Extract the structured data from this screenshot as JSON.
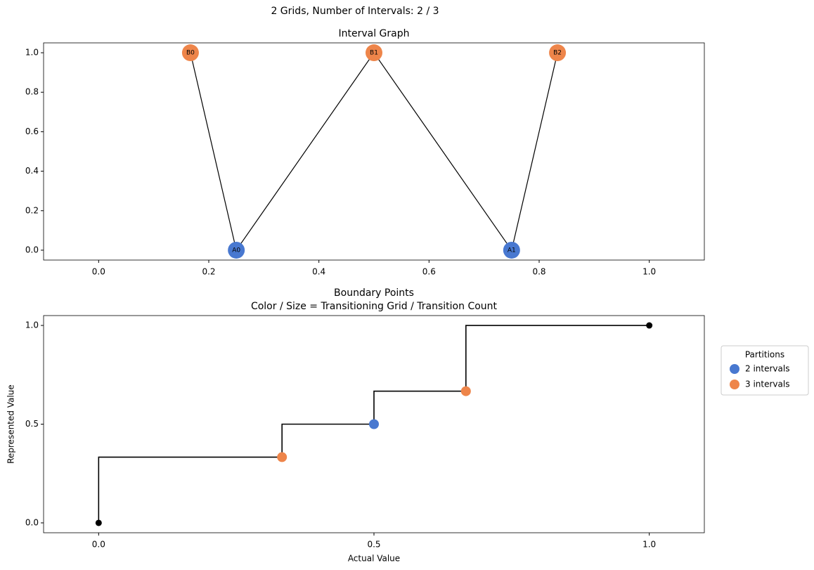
{
  "title": "2 Grids, Number of Intervals: 2 / 3",
  "chart_data": [
    {
      "type": "graph",
      "title": "Interval Graph",
      "nodes": [
        {
          "label": "B0",
          "x": 0.1667,
          "y": 1,
          "color": "#ee854a"
        },
        {
          "label": "B1",
          "x": 0.5,
          "y": 1,
          "color": "#ee854a"
        },
        {
          "label": "B2",
          "x": 0.8333,
          "y": 1,
          "color": "#ee854a"
        },
        {
          "label": "A0",
          "x": 0.25,
          "y": 0,
          "color": "#4878d0"
        },
        {
          "label": "A1",
          "x": 0.75,
          "y": 0,
          "color": "#4878d0"
        }
      ],
      "edges": [
        [
          0,
          3
        ],
        [
          3,
          1
        ],
        [
          1,
          4
        ],
        [
          4,
          2
        ]
      ],
      "edge_color": "#000000",
      "xlim": [
        -0.1,
        1.1
      ],
      "xticks": [
        {
          "value": 0,
          "label": "0.0"
        },
        0.2,
        0.4,
        0.6,
        0.8,
        {
          "value": 1,
          "label": "1.0"
        }
      ],
      "ylim": [
        -0.05,
        1.05
      ],
      "yticks": [
        {
          "value": 0,
          "label": "0.0"
        },
        0.2,
        0.4,
        0.6,
        0.8,
        {
          "value": 1,
          "label": "1.0"
        }
      ]
    },
    {
      "type": "step",
      "title": "Boundary Points\nColor / Size = Transitioning Grid / Transition Count",
      "xlabel": "Actual Value",
      "ylabel": "Represented Value",
      "x": [
        0,
        0.333,
        0.5,
        0.667,
        1
      ],
      "values": [
        0,
        0.333,
        0.5,
        0.667,
        1
      ],
      "step": "pre",
      "color": "#000000",
      "endpoints": {
        "x": [
          0,
          1
        ],
        "values": [
          0,
          1
        ],
        "color": "#000000"
      },
      "series": [
        {
          "name": "2 intervals",
          "color": "#4878d0",
          "x": [
            0.5
          ],
          "values": [
            0.5
          ]
        },
        {
          "name": "3 intervals",
          "color": "#ee854a",
          "x": [
            0.333,
            0.667
          ],
          "values": [
            0.333,
            0.667
          ]
        }
      ],
      "legend_title": "Partitions",
      "legend": "outside right",
      "xlim": [
        -0.1,
        1.1
      ],
      "xticks": [
        {
          "value": 0,
          "label": "0.0"
        },
        {
          "value": 0.5,
          "label": "0.5"
        },
        {
          "value": 1,
          "label": "1.0"
        }
      ],
      "ylim": [
        -0.05,
        1.05
      ],
      "yticks": [
        {
          "value": 0,
          "label": "0.0"
        },
        {
          "value": 0.5,
          "label": "0.5"
        },
        {
          "value": 1,
          "label": "1.0"
        }
      ]
    }
  ]
}
